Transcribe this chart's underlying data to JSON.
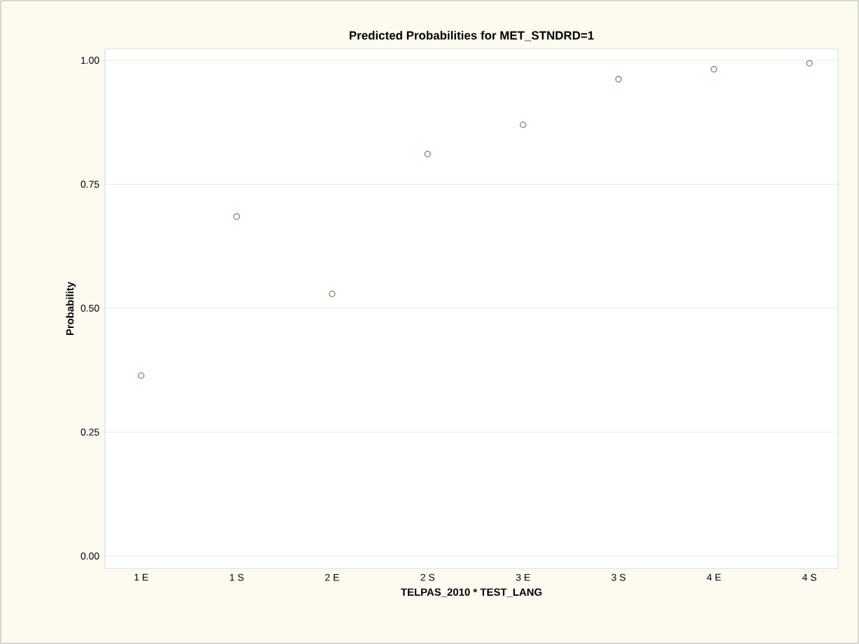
{
  "chart_data": {
    "type": "scatter",
    "title": "Predicted Probabilities for MET_STNDRD=1",
    "xlabel": "TELPAS_2010 * TEST_LANG",
    "ylabel": "Probability",
    "categories": [
      "1 E",
      "1 S",
      "2 E",
      "2 S",
      "3 E",
      "3 S",
      "4 E",
      "4 S"
    ],
    "series": [
      {
        "color": "#5f8f55",
        "values": [
          0.364,
          0.685,
          0.529,
          0.811,
          0.87,
          0.962,
          0.982,
          0.994
        ]
      }
    ],
    "ylim": [
      -0.025,
      1.023
    ],
    "yticks": [
      {
        "value": 0,
        "label": "0.00"
      },
      {
        "value": 0.25,
        "label": "0.25"
      },
      {
        "value": 0.5,
        "label": "0.50"
      },
      {
        "value": 0.75,
        "label": "0.75"
      },
      {
        "value": 1,
        "label": "1.00"
      }
    ],
    "grid": "y",
    "marker": "circle"
  }
}
